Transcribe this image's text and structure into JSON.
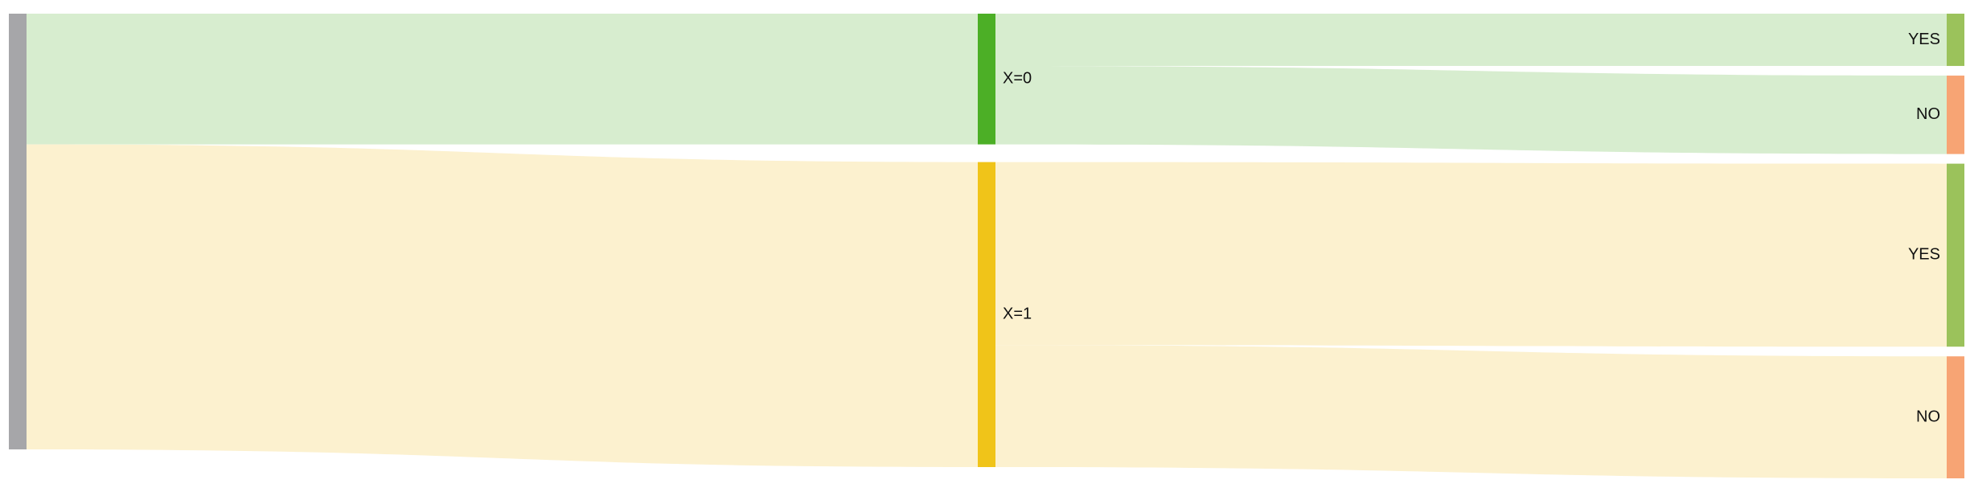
{
  "chart_data": {
    "type": "sankey",
    "title": "",
    "nodes": [
      {
        "id": "root",
        "label": "",
        "stage": 0,
        "color": "#a6a6a9"
      },
      {
        "id": "x0",
        "label": "X=0",
        "stage": 1,
        "color": "#4caf26"
      },
      {
        "id": "x1",
        "label": "X=1",
        "stage": 1,
        "color": "#f0c419"
      },
      {
        "id": "x0_yes",
        "label": "YES",
        "stage": 2,
        "color": "#9bc25b"
      },
      {
        "id": "x0_no",
        "label": "NO",
        "stage": 2,
        "color": "#f7a474"
      },
      {
        "id": "x1_yes",
        "label": "YES",
        "stage": 2,
        "color": "#9bc25b"
      },
      {
        "id": "x1_no",
        "label": "NO",
        "stage": 2,
        "color": "#f7a474"
      }
    ],
    "links": [
      {
        "source": "root",
        "target": "x0",
        "value": 30,
        "color": "#d7edcf"
      },
      {
        "source": "root",
        "target": "x1",
        "value": 70,
        "color": "#fcf1cf"
      },
      {
        "source": "x0",
        "target": "x0_yes",
        "value": 12,
        "color": "#d7edcf"
      },
      {
        "source": "x0",
        "target": "x0_no",
        "value": 18,
        "color": "#d7edcf"
      },
      {
        "source": "x1",
        "target": "x1_yes",
        "value": 42,
        "color": "#fcf1cf"
      },
      {
        "source": "x1",
        "target": "x1_no",
        "value": 28,
        "color": "#fcf1cf"
      }
    ]
  }
}
